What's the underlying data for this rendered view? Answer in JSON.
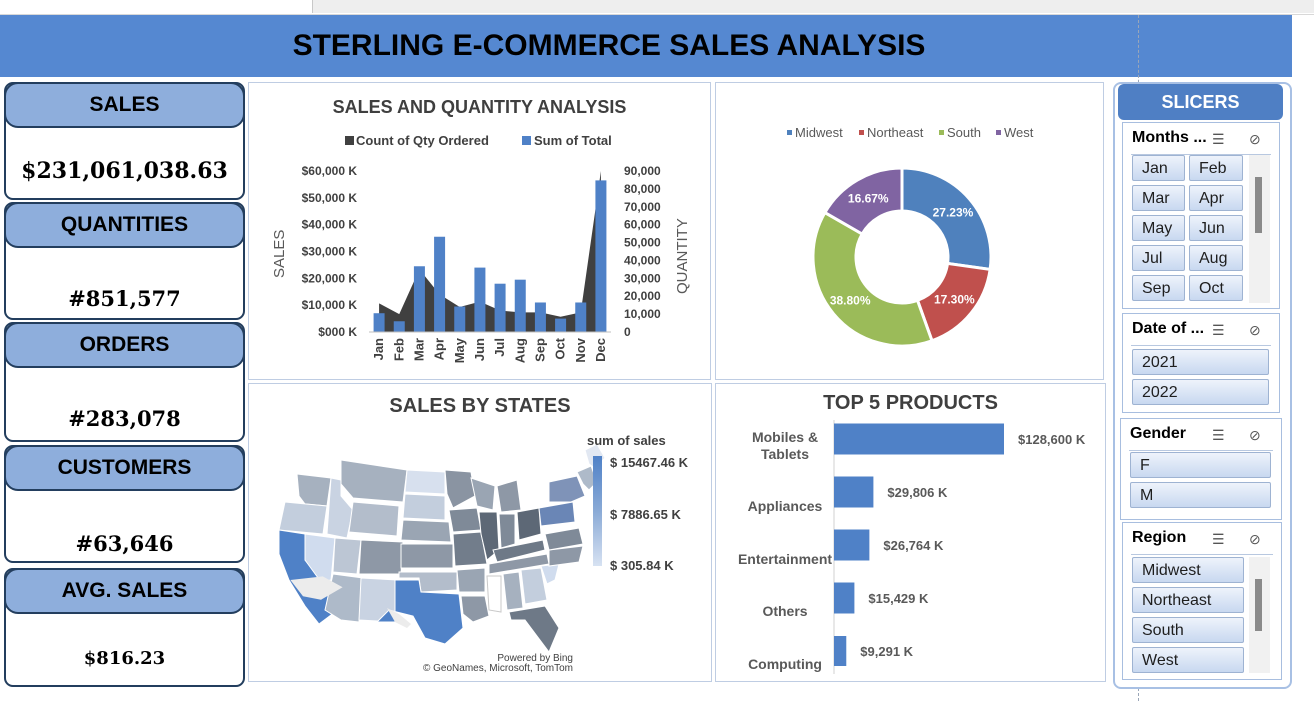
{
  "title": "STERLING E-COMMERCE SALES ANALYSIS",
  "kpis": {
    "sales": {
      "label": "SALES",
      "value": "$231,061,038.63"
    },
    "quantities": {
      "label": "QUANTITIES",
      "value": "#851,577"
    },
    "orders": {
      "label": "ORDERS",
      "value": "#283,078"
    },
    "customers": {
      "label": "CUSTOMERS",
      "value": "#63,646"
    },
    "avg_sales": {
      "label": "AVG. SALES",
      "value": "$816.23"
    }
  },
  "colors": {
    "title_bar": "#5588d1",
    "blue": "#4f81c7",
    "dark": "#404040",
    "midwest": "#4f81bd",
    "northeast": "#c0504d",
    "south": "#9bbb59",
    "west": "#8064a2"
  },
  "chart_data": [
    {
      "type": "bar",
      "title": "SALES AND QUANTITY ANALYSIS",
      "legend": [
        "Count of Qty Ordered",
        "Sum of Total"
      ],
      "legend_position": "top",
      "xlabel": "",
      "ylabel": "SALES",
      "y2label": "QUANTITY",
      "categories": [
        "Jan",
        "Feb",
        "Mar",
        "Apr",
        "May",
        "Jun",
        "Jul",
        "Aug",
        "Sep",
        "Oct",
        "Nov",
        "Dec"
      ],
      "y_ticks": [
        "$60,000 K",
        "$50,000 K",
        "$40,000 K",
        "$30,000 K",
        "$20,000 K",
        "$10,000 K",
        "$000 K"
      ],
      "y2_ticks": [
        "90,000",
        "80,000",
        "70,000",
        "60,000",
        "50,000",
        "40,000",
        "30,000",
        "20,000",
        "10,000",
        "0"
      ],
      "ylim": [
        0,
        60000
      ],
      "y2lim": [
        0,
        90000
      ],
      "series": [
        {
          "name": "Count of Qty Ordered",
          "kind": "area",
          "values": [
            16000,
            10000,
            35000,
            21000,
            14000,
            17000,
            12000,
            11000,
            11000,
            8500,
            11000,
            90000
          ]
        },
        {
          "name": "Sum of Total",
          "kind": "bar",
          "values": [
            7000,
            4000,
            24500,
            35500,
            9500,
            24000,
            18000,
            19500,
            11000,
            5000,
            11000,
            56500
          ]
        }
      ]
    },
    {
      "type": "pie",
      "title": "",
      "legend": [
        "Midwest",
        "Northeast",
        "South",
        "West"
      ],
      "legend_position": "top",
      "labels": [
        "Midwest",
        "Northeast",
        "South",
        "West"
      ],
      "values": [
        27.23,
        17.3,
        38.8,
        16.67
      ],
      "value_labels": [
        "27.23%",
        "17.30%",
        "38.80%",
        "16.67%"
      ]
    },
    {
      "type": "bar",
      "orientation": "horizontal",
      "title": "TOP 5 PRODUCTS",
      "categories": [
        "Mobiles & Tablets",
        "Appliances",
        "Entertainment",
        "Others",
        "Computing"
      ],
      "values": [
        128600,
        29806,
        26764,
        15429,
        9291
      ],
      "value_labels": [
        "$128,600 K",
        "$29,806 K",
        "$26,764 K",
        "$15,429 K",
        "$9,291 K"
      ]
    }
  ],
  "map": {
    "title": "SALES BY STATES",
    "legend_title": "sum of sales",
    "legend_max": "$ 15467.46 K",
    "legend_mid": "$ 7886.65 K",
    "legend_min": "$ 305.84 K",
    "credit_1": "Powered by Bing",
    "credit_2": "© GeoNames, Microsoft, TomTom"
  },
  "slicers": {
    "header": "SLICERS",
    "months": {
      "title": "Months ...",
      "items": [
        "Jan",
        "Feb",
        "Mar",
        "Apr",
        "May",
        "Jun",
        "Jul",
        "Aug",
        "Sep",
        "Oct"
      ]
    },
    "date": {
      "title": "Date of ...",
      "items": [
        "2021",
        "2022"
      ]
    },
    "gender": {
      "title": "Gender",
      "items": [
        "F",
        "M"
      ]
    },
    "region": {
      "title": "Region",
      "items": [
        "Midwest",
        "Northeast",
        "South",
        "West"
      ]
    }
  },
  "icons": {
    "multi_select": "multi-select-icon",
    "clear_filter": "clear-filter-icon"
  }
}
